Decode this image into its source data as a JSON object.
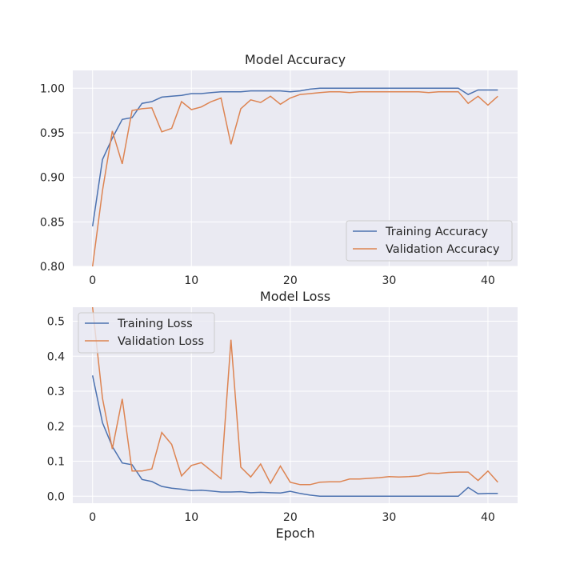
{
  "colors": {
    "training": "#4c72b0",
    "validation": "#dd8452",
    "background": "#eaeaf2"
  },
  "chart_data": [
    {
      "type": "line",
      "title": "Model Accuracy",
      "xlabel": "",
      "ylabel": "",
      "xlim": [
        -2,
        43
      ],
      "ylim": [
        0.8,
        1.02
      ],
      "xticks": [
        0,
        10,
        20,
        30,
        40
      ],
      "xtick_labels": [
        "0",
        "10",
        "20",
        "30",
        "40"
      ],
      "yticks": [
        0.8,
        0.85,
        0.9,
        0.95,
        1.0
      ],
      "ytick_labels": [
        "0.80",
        "0.85",
        "0.90",
        "0.95",
        "1.00"
      ],
      "grid": true,
      "legend_position": "lower right",
      "series": [
        {
          "name": "Training Accuracy",
          "color": "#4c72b0",
          "values": [
            0.845,
            0.92,
            0.944,
            0.965,
            0.967,
            0.983,
            0.985,
            0.99,
            0.991,
            0.992,
            0.994,
            0.994,
            0.995,
            0.996,
            0.996,
            0.996,
            0.997,
            0.997,
            0.997,
            0.997,
            0.996,
            0.997,
            0.999,
            1.0,
            1.0,
            1.0,
            1.0,
            1.0,
            1.0,
            1.0,
            1.0,
            1.0,
            1.0,
            1.0,
            1.0,
            1.0,
            1.0,
            1.0,
            0.993,
            0.998,
            0.998,
            0.998
          ]
        },
        {
          "name": "Validation Accuracy",
          "color": "#dd8452",
          "values": [
            0.8,
            0.885,
            0.952,
            0.915,
            0.975,
            0.977,
            0.978,
            0.951,
            0.955,
            0.985,
            0.976,
            0.979,
            0.985,
            0.989,
            0.937,
            0.977,
            0.987,
            0.984,
            0.991,
            0.982,
            0.989,
            0.993,
            0.994,
            0.995,
            0.996,
            0.996,
            0.995,
            0.996,
            0.996,
            0.996,
            0.996,
            0.996,
            0.996,
            0.996,
            0.995,
            0.996,
            0.996,
            0.996,
            0.983,
            0.991,
            0.981,
            0.991
          ]
        }
      ]
    },
    {
      "type": "line",
      "title": "Model Loss",
      "xlabel": "Epoch",
      "ylabel": "",
      "xlim": [
        -2,
        43
      ],
      "ylim": [
        -0.02,
        0.54
      ],
      "xticks": [
        0,
        10,
        20,
        30,
        40
      ],
      "xtick_labels": [
        "0",
        "10",
        "20",
        "30",
        "40"
      ],
      "yticks": [
        0.0,
        0.1,
        0.2,
        0.3,
        0.4,
        0.5
      ],
      "ytick_labels": [
        "0.0",
        "0.1",
        "0.2",
        "0.3",
        "0.4",
        "0.5"
      ],
      "grid": true,
      "legend_position": "upper left",
      "series": [
        {
          "name": "Training Loss",
          "color": "#4c72b0",
          "values": [
            0.345,
            0.21,
            0.142,
            0.095,
            0.09,
            0.048,
            0.042,
            0.028,
            0.023,
            0.02,
            0.016,
            0.017,
            0.015,
            0.012,
            0.012,
            0.013,
            0.01,
            0.011,
            0.01,
            0.009,
            0.014,
            0.008,
            0.003,
            0.0,
            0.0,
            0.0,
            0.0,
            0.0,
            0.0,
            0.0,
            0.0,
            0.0,
            0.0,
            0.0,
            0.0,
            0.0,
            0.0,
            0.0,
            0.025,
            0.007,
            0.008,
            0.008
          ]
        },
        {
          "name": "Validation Loss",
          "color": "#dd8452",
          "values": [
            0.54,
            0.28,
            0.135,
            0.278,
            0.072,
            0.072,
            0.078,
            0.182,
            0.148,
            0.058,
            0.088,
            0.096,
            0.073,
            0.05,
            0.447,
            0.083,
            0.055,
            0.092,
            0.037,
            0.086,
            0.04,
            0.033,
            0.033,
            0.04,
            0.041,
            0.041,
            0.049,
            0.049,
            0.051,
            0.053,
            0.056,
            0.055,
            0.056,
            0.058,
            0.066,
            0.065,
            0.068,
            0.069,
            0.069,
            0.045,
            0.072,
            0.04
          ]
        }
      ]
    }
  ]
}
